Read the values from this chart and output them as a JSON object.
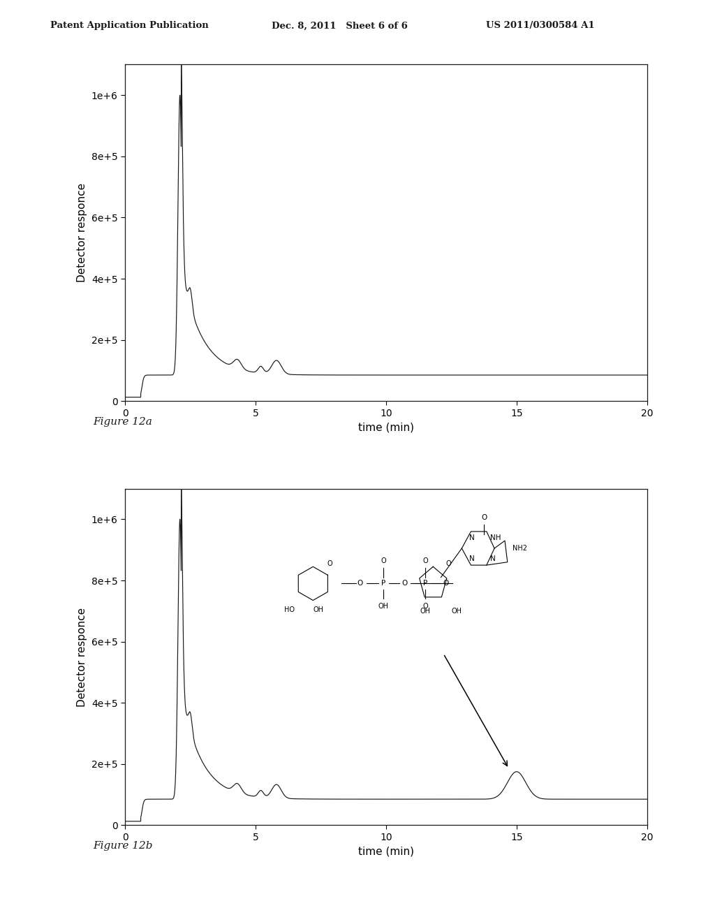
{
  "header_left": "Patent Application Publication",
  "header_mid": "Dec. 8, 2011   Sheet 6 of 6",
  "header_right": "US 2011/0300584 A1",
  "fig12a_label": "Figure 12a",
  "fig12b_label": "Figure 12b",
  "ylabel": "Detector responce",
  "xlabel": "time (min)",
  "xlim": [
    0,
    20
  ],
  "ylim": [
    0,
    1100000
  ],
  "yticks": [
    0,
    200000,
    400000,
    600000,
    800000,
    1000000
  ],
  "ytick_labels": [
    "0",
    "2e+5",
    "4e+5",
    "6e+5",
    "8e+5",
    "1e+6"
  ],
  "xticks": [
    0,
    5,
    10,
    15,
    20
  ],
  "background_color": "#ffffff",
  "line_color": "#1a1a1a",
  "baseline_12a": 85000,
  "baseline_12b": 85000
}
